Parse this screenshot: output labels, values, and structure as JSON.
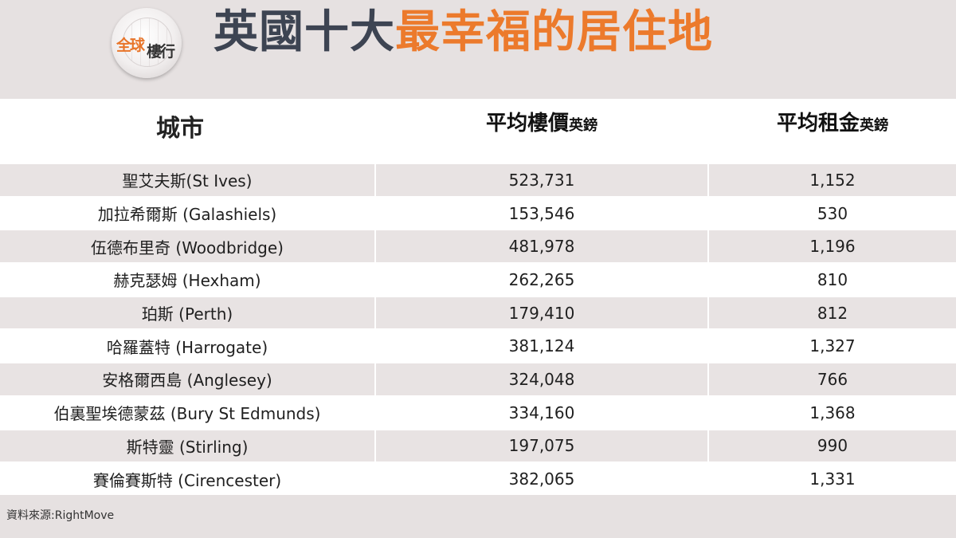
{
  "header": {
    "logo_text_a": "全球",
    "logo_text_b": "樓行",
    "title_dark": "英國十大",
    "title_accent": "最幸福的居住地"
  },
  "table": {
    "col_city": "城市",
    "col_price": "平均樓價",
    "col_price_unit": "英鎊",
    "col_rent": "平均租金",
    "col_rent_unit": "英鎊",
    "rows": [
      {
        "city": "聖艾夫斯(St Ives)",
        "price": "523,731",
        "rent": "1,152"
      },
      {
        "city": "加拉希爾斯 (Galashiels)",
        "price": "153,546",
        "rent": "530"
      },
      {
        "city": "伍德布里奇 (Woodbridge)",
        "price": "481,978",
        "rent": "1,196"
      },
      {
        "city": "赫克瑟姆 (Hexham)",
        "price": "262,265",
        "rent": "810"
      },
      {
        "city": "珀斯 (Perth)",
        "price": "179,410",
        "rent": "812"
      },
      {
        "city": "哈羅蓋特 (Harrogate)",
        "price": "381,124",
        "rent": "1,327"
      },
      {
        "city": "安格爾西島 (Anglesey)",
        "price": "324,048",
        "rent": "766"
      },
      {
        "city": "伯裏聖埃德蒙茲 (Bury St Edmunds)",
        "price": "334,160",
        "rent": "1,368"
      },
      {
        "city": "斯特靈 (Stirling)",
        "price": "197,075",
        "rent": "990"
      },
      {
        "city": "賽倫賽斯特 (Cirencester)",
        "price": "382,065",
        "rent": "1,331"
      }
    ]
  },
  "footer": {
    "source": "資料來源:RightMove"
  },
  "colors": {
    "accent": "#ec7a2c",
    "title_dark": "#3d4452",
    "background": "#e6e1e1"
  }
}
